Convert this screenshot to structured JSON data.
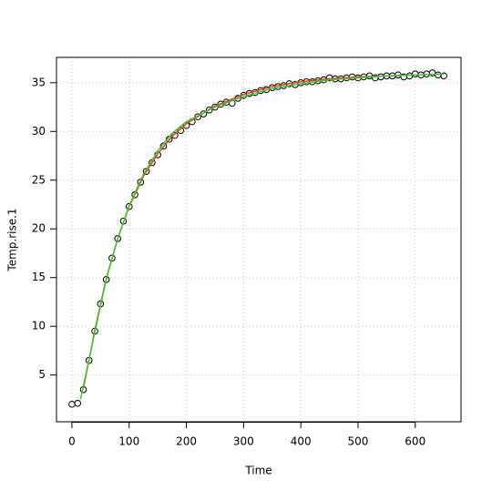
{
  "chart_data": {
    "type": "scatter",
    "x_label": "Time",
    "y_label": "Temp.rise.1",
    "xlim": [
      -27,
      680
    ],
    "ylim": [
      0.2,
      37.6
    ],
    "xticks": [
      0,
      100,
      200,
      300,
      400,
      500,
      600
    ],
    "yticks": [
      5,
      10,
      15,
      20,
      25,
      30,
      35
    ],
    "grid": true,
    "points": {
      "color": "#000000",
      "x": [
        0,
        10,
        20,
        30,
        40,
        50,
        60,
        70,
        80,
        90,
        100,
        110,
        120,
        130,
        140,
        150,
        160,
        170,
        180,
        190,
        200,
        210,
        220,
        230,
        240,
        250,
        260,
        270,
        280,
        290,
        300,
        310,
        320,
        330,
        340,
        350,
        360,
        370,
        380,
        390,
        400,
        410,
        420,
        430,
        440,
        450,
        460,
        470,
        480,
        490,
        500,
        510,
        520,
        530,
        540,
        550,
        560,
        570,
        580,
        590,
        600,
        610,
        620,
        630,
        640,
        650
      ],
      "y": [
        2.0,
        2.1,
        3.5,
        6.5,
        9.5,
        12.3,
        14.8,
        17.0,
        19.0,
        20.8,
        22.3,
        23.5,
        24.8,
        25.9,
        26.8,
        27.6,
        28.5,
        29.2,
        29.6,
        30.1,
        30.6,
        31.0,
        31.5,
        31.8,
        32.2,
        32.5,
        32.8,
        33.0,
        32.9,
        33.4,
        33.7,
        33.9,
        34.0,
        34.2,
        34.3,
        34.5,
        34.6,
        34.7,
        34.9,
        34.8,
        35.0,
        35.1,
        35.1,
        35.2,
        35.3,
        35.5,
        35.4,
        35.4,
        35.5,
        35.6,
        35.5,
        35.6,
        35.7,
        35.5,
        35.6,
        35.7,
        35.7,
        35.8,
        35.6,
        35.7,
        35.9,
        35.8,
        35.9,
        36.0,
        35.8,
        35.7
      ]
    },
    "lines": [
      {
        "color": "#e8401a",
        "x": [
          20,
          40,
          60,
          80,
          100,
          125,
          150,
          175,
          200,
          250,
          300,
          350,
          400,
          450,
          500,
          550,
          600
        ],
        "y": [
          3.6,
          9.6,
          14.9,
          19.0,
          22.3,
          25.4,
          27.7,
          29.5,
          30.8,
          32.6,
          33.8,
          34.6,
          35.1,
          35.4,
          35.6,
          35.7,
          35.8
        ]
      },
      {
        "color": "#33cc33",
        "x": [
          15,
          40,
          60,
          80,
          100,
          125,
          150,
          175,
          200,
          250,
          300,
          350,
          400,
          450,
          500,
          550,
          600,
          650
        ],
        "y": [
          2.5,
          9.4,
          14.8,
          19.0,
          22.4,
          25.6,
          28.0,
          29.8,
          31.0,
          32.5,
          33.6,
          34.4,
          34.9,
          35.3,
          35.5,
          35.7,
          35.8,
          35.9
        ]
      }
    ]
  }
}
